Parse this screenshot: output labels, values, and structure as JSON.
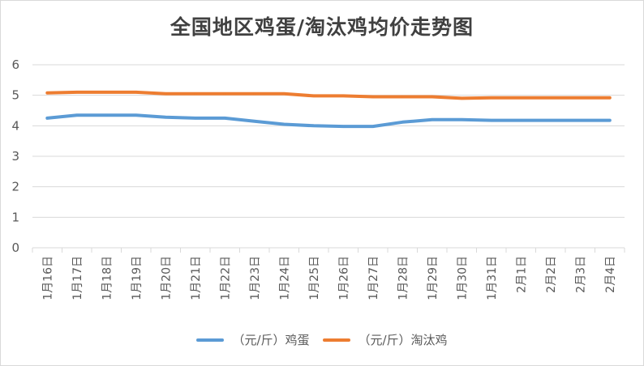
{
  "chart_data": {
    "type": "line",
    "title": "全国地区鸡蛋/淘汰鸡均价走势图",
    "xlabel": "",
    "ylabel": "",
    "ylim": [
      0,
      6
    ],
    "yticks": [
      "0",
      "1",
      "2",
      "3",
      "4",
      "5",
      "6"
    ],
    "grid": true,
    "legend_position": "bottom",
    "categories": [
      "1月16日",
      "1月17日",
      "1月18日",
      "1月19日",
      "1月20日",
      "1月21日",
      "1月22日",
      "1月23日",
      "1月24日",
      "1月25日",
      "1月26日",
      "1月27日",
      "1月28日",
      "1月29日",
      "1月30日",
      "1月31日",
      "2月1日",
      "2月2日",
      "2月3日",
      "2月4日"
    ],
    "series": [
      {
        "name": "（元/斤）鸡蛋",
        "color": "#5b9bd5",
        "values": [
          4.25,
          4.35,
          4.35,
          4.35,
          4.28,
          4.25,
          4.25,
          4.15,
          4.05,
          4.0,
          3.98,
          3.98,
          4.12,
          4.2,
          4.2,
          4.18,
          4.18,
          4.18,
          4.18,
          4.18
        ]
      },
      {
        "name": "（元/斤）淘汰鸡",
        "color": "#ed7d31",
        "values": [
          5.08,
          5.1,
          5.1,
          5.1,
          5.05,
          5.05,
          5.05,
          5.05,
          5.05,
          4.98,
          4.98,
          4.95,
          4.95,
          4.95,
          4.9,
          4.92,
          4.92,
          4.92,
          4.92,
          4.92
        ]
      }
    ]
  }
}
